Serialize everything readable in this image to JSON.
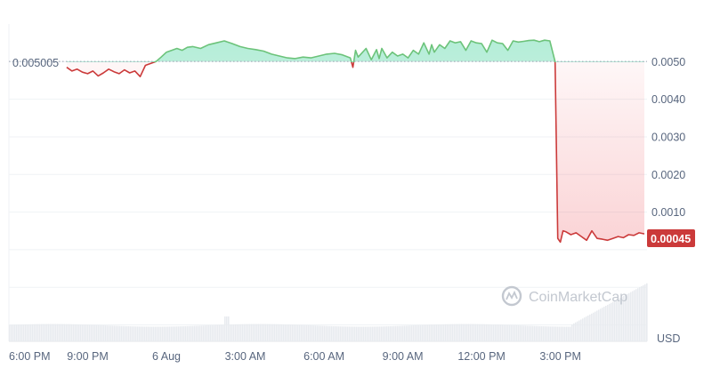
{
  "watermark": "CoinMarketCap",
  "currency": "USD",
  "reference_label": "0.005005",
  "current_label": "0.00045",
  "colors": {
    "up": "#16c784",
    "up_line": "#6cc37a",
    "down": "#cb3a3a",
    "grid": "#eff2f5",
    "axis_text": "#58667e",
    "volume": "#e8ebef"
  },
  "chart_data": {
    "type": "line",
    "title": "",
    "xlabel": "",
    "ylabel": "",
    "unit": "USD",
    "ylim": [
      -0.0022,
      0.006
    ],
    "y_ticks": [
      0.001,
      0.002,
      0.003,
      0.004,
      0.005
    ],
    "y_tick_labels": [
      "0.0010",
      "0.0020",
      "0.0030",
      "0.0040",
      "0.0050"
    ],
    "x_ticks": [
      "6:00 PM",
      "9:00 PM",
      "6 Aug",
      "3:00 AM",
      "6:00 AM",
      "9:00 AM",
      "12:00 PM",
      "3:00 PM"
    ],
    "x_tick_hours": [
      0,
      3,
      6,
      9,
      12,
      15,
      18,
      21
    ],
    "xlim_hours": [
      0,
      24.3
    ],
    "reference_price": 0.005005,
    "current_price": 0.00045,
    "grid": true,
    "series": [
      {
        "x_hours": [
          2.2,
          2.4,
          2.6,
          2.8,
          3.0,
          3.2,
          3.4,
          3.6,
          3.8,
          4.0,
          4.2,
          4.4,
          4.6,
          4.8,
          5.0,
          5.2,
          5.4,
          5.6,
          5.8,
          6.0,
          6.2,
          6.4,
          6.6,
          6.8,
          7.0,
          7.3,
          7.6,
          7.9,
          8.2,
          8.5,
          8.8,
          9.1,
          9.4,
          9.7,
          10.0,
          10.3,
          10.6,
          10.9,
          11.2,
          11.5,
          11.8,
          12.1,
          12.4,
          12.7,
          13.0,
          13.1,
          13.2,
          13.3,
          13.4,
          13.6,
          13.8,
          14.0,
          14.1,
          14.2,
          14.4,
          14.6,
          14.8,
          15.0,
          15.2,
          15.4,
          15.6,
          15.8,
          16.0,
          16.1,
          16.2,
          16.4,
          16.6,
          16.8,
          17.0,
          17.2,
          17.4,
          17.6,
          17.8,
          18.0,
          18.2,
          18.4,
          18.6,
          18.8,
          19.0,
          19.2,
          19.4,
          19.6,
          19.8,
          20.0,
          20.2,
          20.4,
          20.6,
          20.8,
          20.9,
          21.0,
          21.1,
          21.2,
          21.4,
          21.6,
          21.8,
          22.0,
          22.2,
          22.4,
          22.6,
          22.8,
          23.0,
          23.2,
          23.4,
          23.6,
          23.8,
          24.0,
          24.2
        ],
        "values": [
          0.00485,
          0.00475,
          0.0048,
          0.00472,
          0.00468,
          0.00475,
          0.00462,
          0.0047,
          0.0048,
          0.00473,
          0.00468,
          0.00478,
          0.0047,
          0.00475,
          0.0046,
          0.0049,
          0.00495,
          0.005,
          0.00512,
          0.00525,
          0.0053,
          0.00535,
          0.0053,
          0.00538,
          0.0054,
          0.00535,
          0.00545,
          0.0055,
          0.00555,
          0.00548,
          0.0054,
          0.00535,
          0.00532,
          0.00528,
          0.0052,
          0.00515,
          0.0051,
          0.00508,
          0.00512,
          0.0051,
          0.00515,
          0.0052,
          0.00522,
          0.00518,
          0.0051,
          0.00485,
          0.0053,
          0.00512,
          0.0052,
          0.00535,
          0.00505,
          0.00532,
          0.00508,
          0.00535,
          0.0051,
          0.00525,
          0.00515,
          0.0052,
          0.0051,
          0.0053,
          0.0052,
          0.0055,
          0.0052,
          0.00545,
          0.00525,
          0.00545,
          0.00535,
          0.00555,
          0.0055,
          0.00553,
          0.0053,
          0.00555,
          0.0055,
          0.00548,
          0.00525,
          0.00557,
          0.0055,
          0.00548,
          0.0053,
          0.00555,
          0.00552,
          0.00554,
          0.00556,
          0.00557,
          0.00553,
          0.00557,
          0.00555,
          0.005,
          0.0003,
          0.0002,
          0.0005,
          0.00048,
          0.0004,
          0.00045,
          0.00035,
          0.00025,
          0.0005,
          0.0003,
          0.00028,
          0.00025,
          0.0003,
          0.00035,
          0.00032,
          0.0004,
          0.00038,
          0.00045,
          0.00042
        ]
      }
    ]
  }
}
